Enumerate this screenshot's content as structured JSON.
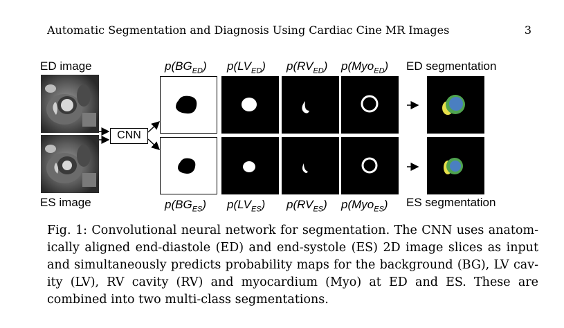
{
  "header": {
    "title": "Automatic Segmentation and Diagnosis Using Cardiac Cine MR Images",
    "page_number": "3"
  },
  "figure": {
    "ed_image_label": "ED image",
    "es_image_label": "ES image",
    "cnn_label": "CNN",
    "ed_segmentation_label": "ED segmentation",
    "es_segmentation_label": "ES segmentation",
    "ed_prob_labels": [
      {
        "p": "p(BG",
        "sub": "ED",
        "close": ")"
      },
      {
        "p": "p(LV",
        "sub": "ED",
        "close": ")"
      },
      {
        "p": "p(RV",
        "sub": "ED",
        "close": ")"
      },
      {
        "p": "p(Myo",
        "sub": "ED",
        "close": ")"
      }
    ],
    "es_prob_labels": [
      {
        "p": "p(BG",
        "sub": "ES",
        "close": ")"
      },
      {
        "p": "p(LV",
        "sub": "ES",
        "close": ")"
      },
      {
        "p": "p(RV",
        "sub": "ES",
        "close": ")"
      },
      {
        "p": "p(Myo",
        "sub": "ES",
        "close": ")"
      }
    ],
    "colors": {
      "lv": "#4a7fc1",
      "myo": "#4fa34f",
      "rv": "#e6e04a"
    }
  },
  "caption": {
    "lines": [
      "Fig. 1: Convolutional neural network for segmentation. The CNN uses anatom-",
      "ically aligned end-diastole (ED) and end-systole (ES) 2D image slices as input",
      "and simultaneously predicts probability maps for the background (BG), LV cav-",
      "ity (LV), RV cavity (RV) and myocardium (Myo) at ED and ES. These are",
      "combined into two multi-class segmentations."
    ]
  }
}
